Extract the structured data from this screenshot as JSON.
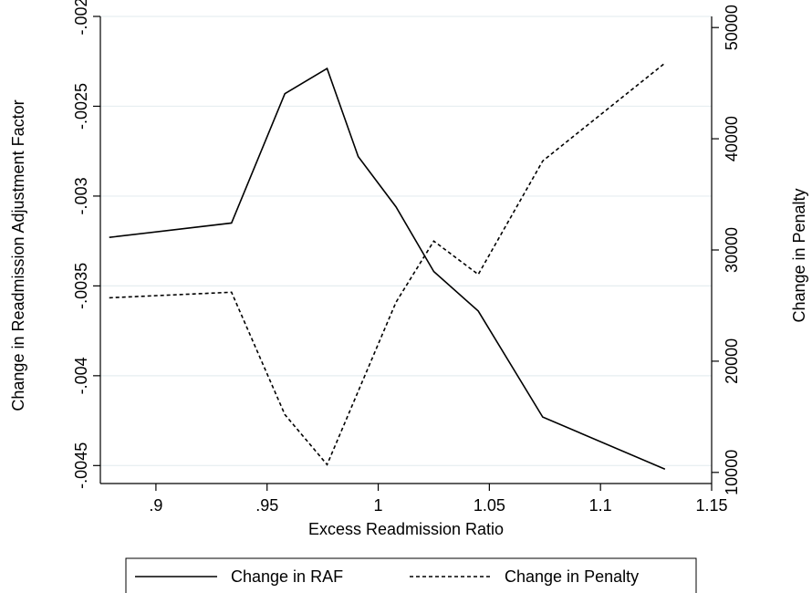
{
  "chart_data": {
    "type": "line",
    "title": "",
    "xlabel": "Excess Readmission Ratio",
    "ylabel": "Change in Readmission Adjustment Factor",
    "y2label": "Change in Penalty",
    "xlim": [
      0.875,
      1.15
    ],
    "ylim": [
      -0.0046,
      -0.002
    ],
    "y2lim": [
      9000,
      51000
    ],
    "grid": true,
    "legend_position": "bottom",
    "x_ticks": [
      0.9,
      0.95,
      1,
      1.05,
      1.1,
      1.15
    ],
    "x_tick_labels": [
      ".9",
      ".95",
      "1",
      "1.05",
      "1.1",
      "1.15"
    ],
    "y_ticks": [
      -0.002,
      -0.0025,
      -0.003,
      -0.0035,
      -0.004,
      -0.0045
    ],
    "y_tick_labels": [
      "-.002",
      "-.0025",
      "-.003",
      "-.0035",
      "-.004",
      "-.0045"
    ],
    "y2_ticks": [
      10000,
      20000,
      30000,
      40000,
      50000
    ],
    "y2_tick_labels": [
      "10000",
      "20000",
      "30000",
      "40000",
      "50000"
    ],
    "series": [
      {
        "name": "Change in RAF",
        "axis": "left",
        "style": "solid",
        "color": "#000000",
        "x": [
          0.879,
          0.934,
          0.958,
          0.977,
          0.991,
          1.008,
          1.025,
          1.045,
          1.074,
          1.129
        ],
        "values": [
          -0.00323,
          -0.00315,
          -0.00243,
          -0.00229,
          -0.00278,
          -0.00306,
          -0.00342,
          -0.00364,
          -0.00423,
          -0.00452
        ]
      },
      {
        "name": "Change in Penalty",
        "axis": "right",
        "style": "dashed",
        "color": "#000000",
        "x": [
          0.879,
          0.934,
          0.958,
          0.977,
          1.008,
          1.025,
          1.045,
          1.074,
          1.129
        ],
        "values": [
          25700,
          26200,
          15200,
          10700,
          25300,
          30800,
          27800,
          38000,
          46800
        ]
      }
    ]
  }
}
